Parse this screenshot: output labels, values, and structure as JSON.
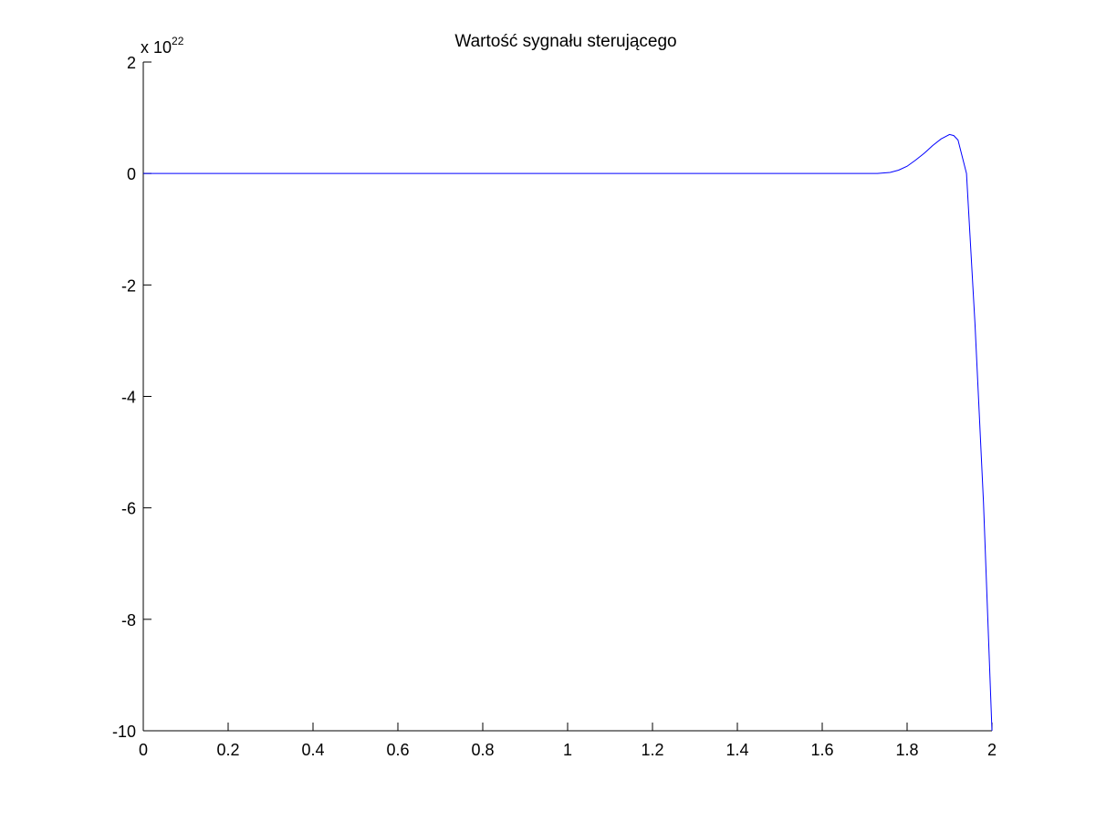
{
  "chart_data": {
    "type": "line",
    "title": "Wartość sygnału sterującego",
    "xlabel": "",
    "ylabel": "",
    "xlim": [
      0,
      2
    ],
    "ylim": [
      -10,
      2
    ],
    "y_multiplier": {
      "base": "x 10",
      "exponent": "22"
    },
    "xticks": [
      "0",
      "0.2",
      "0.4",
      "0.6",
      "0.8",
      "1",
      "1.2",
      "1.4",
      "1.6",
      "1.8",
      "2"
    ],
    "yticks": [
      "-10",
      "-8",
      "-6",
      "-4",
      "-2",
      "0",
      "2"
    ],
    "grid": false,
    "series": [
      {
        "color": "#0000ff",
        "x": [
          0,
          0.2,
          0.4,
          0.6,
          0.8,
          1.0,
          1.2,
          1.4,
          1.6,
          1.7,
          1.73,
          1.76,
          1.78,
          1.8,
          1.82,
          1.84,
          1.86,
          1.88,
          1.9,
          1.91,
          1.92,
          1.94,
          1.96,
          1.98,
          2.0
        ],
        "y": [
          0,
          0,
          0,
          0,
          0,
          0,
          0,
          0,
          0,
          0,
          0,
          0.02,
          0.06,
          0.13,
          0.24,
          0.36,
          0.5,
          0.62,
          0.7,
          0.68,
          0.6,
          0.0,
          -2.7,
          -5.9,
          -10.0
        ]
      }
    ]
  }
}
